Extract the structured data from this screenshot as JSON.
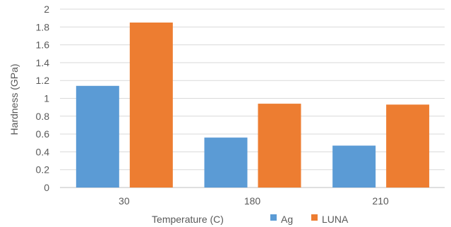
{
  "chart_data": {
    "type": "bar",
    "categories": [
      "30",
      "180",
      "210"
    ],
    "series": [
      {
        "name": "Ag",
        "values": [
          1.14,
          0.56,
          0.47
        ],
        "color": "#5b9bd5"
      },
      {
        "name": "LUNA",
        "values": [
          1.85,
          0.94,
          0.93
        ],
        "color": "#ed7d31"
      }
    ],
    "xlabel": "Temperature (C)",
    "ylabel": "Hardness (GPa)",
    "ylim": [
      0,
      2
    ],
    "yticks": [
      "0",
      "0.2",
      "0.4",
      "0.6",
      "0.8",
      "1",
      "1.2",
      "1.4",
      "1.6",
      "1.8",
      "2"
    ],
    "grid": true,
    "legend": "bottom-right"
  }
}
